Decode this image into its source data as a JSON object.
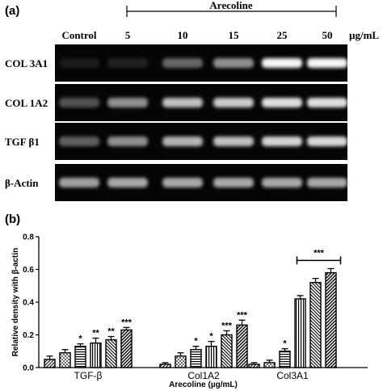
{
  "panel_a": {
    "label": "(a)",
    "bracket_label": "Arecoline",
    "lanes": [
      "Control",
      "5",
      "10",
      "15",
      "25",
      "50"
    ],
    "unit": "µg/mL",
    "rows": [
      {
        "label": "COL 3A1",
        "intensities": [
          0.08,
          0.12,
          0.42,
          0.55,
          0.95,
          0.95
        ]
      },
      {
        "label": "COL 1A2",
        "intensities": [
          0.35,
          0.55,
          0.7,
          0.75,
          0.85,
          0.85
        ]
      },
      {
        "label": "TGF β1",
        "intensities": [
          0.4,
          0.55,
          0.65,
          0.7,
          0.8,
          0.82
        ]
      },
      {
        "label": "β-Actin",
        "intensities": [
          0.6,
          0.62,
          0.62,
          0.62,
          0.62,
          0.62
        ]
      }
    ]
  },
  "panel_b": {
    "label": "(b)"
  },
  "chart_data": {
    "type": "bar",
    "ylabel": "Relative density with β-actin",
    "xlabel": "Arecoline (µg/mL)",
    "ylim": [
      0,
      0.8
    ],
    "yticks": [
      "0.0",
      "0.2",
      "0.4",
      "0.6",
      "0.8"
    ],
    "categories": [
      "TGF-β",
      "Col1A2",
      "Col3A1"
    ],
    "values": [
      [
        0.05,
        0.09,
        0.13,
        0.15,
        0.17,
        0.23
      ],
      [
        0.02,
        0.07,
        0.11,
        0.13,
        0.2,
        0.26
      ],
      [
        0.02,
        0.03,
        0.1,
        0.42,
        0.52,
        0.58
      ]
    ],
    "errors": [
      [
        0.02,
        0.02,
        0.015,
        0.03,
        0.02,
        0.015
      ],
      [
        0.01,
        0.02,
        0.02,
        0.03,
        0.025,
        0.03
      ],
      [
        0.01,
        0.015,
        0.015,
        0.02,
        0.025,
        0.025
      ]
    ],
    "annotations": [
      [
        "",
        "",
        "*",
        "**",
        "**",
        "***"
      ],
      [
        "",
        "",
        "*",
        "*",
        "***",
        "***"
      ],
      [
        "",
        "",
        "*",
        "",
        "",
        ""
      ]
    ],
    "bracket_annotation": "***",
    "grid": false
  }
}
